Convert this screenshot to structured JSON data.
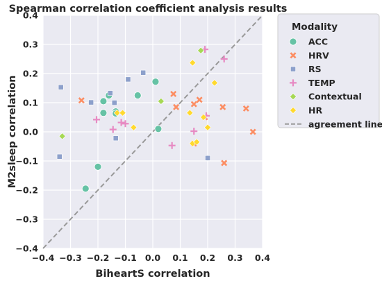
{
  "chart_data": {
    "type": "scatter",
    "title": "Spearman correlation coefficient analysis results",
    "xlabel": "BiheartS correlation",
    "ylabel": "M2sleep correlation",
    "xlim": [
      -0.4,
      0.4
    ],
    "ylim": [
      -0.4,
      0.4
    ],
    "xticks": [
      "−0.4",
      "−0.3",
      "−0.2",
      "−0.1",
      "0.0",
      "0.1",
      "0.2",
      "0.3",
      "0.4"
    ],
    "yticks": [
      "0.4",
      "0.3",
      "0.2",
      "0.1",
      "0.0",
      "−0.1",
      "−0.2",
      "−0.3",
      "−0.4"
    ],
    "xtick_values": [
      -0.4,
      -0.3,
      -0.2,
      -0.1,
      0.0,
      0.1,
      0.2,
      0.3,
      0.4
    ],
    "ytick_values": [
      0.4,
      0.3,
      0.2,
      0.1,
      0.0,
      -0.1,
      -0.2,
      -0.3,
      -0.4
    ],
    "grid": true,
    "background": "#eaeaf2",
    "legend": {
      "title": "Modality",
      "placement": "outside-right-top",
      "agreement_label": "agreement line"
    },
    "agreement_line": {
      "from": [
        -0.4,
        -0.4
      ],
      "to": [
        0.4,
        0.4
      ],
      "color": "#999999",
      "style": "dashed"
    },
    "series": [
      {
        "name": "ACC",
        "marker": "circle",
        "color": "#66c2a5",
        "points": [
          [
            -0.245,
            -0.195
          ],
          [
            -0.2,
            -0.12
          ],
          [
            -0.18,
            0.065
          ],
          [
            -0.18,
            0.105
          ],
          [
            -0.16,
            0.125
          ],
          [
            -0.135,
            0.07
          ],
          [
            -0.135,
            0.063
          ],
          [
            -0.055,
            0.125
          ],
          [
            0.01,
            0.172
          ],
          [
            0.02,
            0.01
          ]
        ]
      },
      {
        "name": "HRV",
        "marker": "x",
        "color": "#fc8d62",
        "points": [
          [
            -0.26,
            0.108
          ],
          [
            0.075,
            0.13
          ],
          [
            0.085,
            0.085
          ],
          [
            0.15,
            0.095
          ],
          [
            0.17,
            0.11
          ],
          [
            0.19,
            0.05
          ],
          [
            0.15,
            -0.04
          ],
          [
            0.255,
            0.085
          ],
          [
            0.26,
            -0.107
          ],
          [
            0.34,
            0.08
          ],
          [
            0.365,
            0.0
          ]
        ]
      },
      {
        "name": "RS",
        "marker": "square",
        "color": "#8da0cb",
        "points": [
          [
            -0.335,
            0.153
          ],
          [
            -0.34,
            -0.085
          ],
          [
            -0.225,
            0.101
          ],
          [
            -0.155,
            0.133
          ],
          [
            -0.14,
            0.1
          ],
          [
            -0.135,
            -0.022
          ],
          [
            -0.09,
            0.18
          ],
          [
            -0.035,
            0.203
          ],
          [
            0.2,
            -0.09
          ]
        ]
      },
      {
        "name": "TEMP",
        "marker": "plus",
        "color": "#e78ac3",
        "points": [
          [
            -0.205,
            0.042
          ],
          [
            -0.145,
            0.008
          ],
          [
            -0.115,
            0.032
          ],
          [
            -0.1,
            0.028
          ],
          [
            0.07,
            -0.047
          ],
          [
            0.15,
            0.002
          ],
          [
            0.19,
            0.283
          ],
          [
            0.26,
            0.25
          ],
          [
            0.195,
            0.055
          ]
        ]
      },
      {
        "name": "Contextual",
        "marker": "diamond",
        "color": "#a6d854",
        "points": [
          [
            -0.33,
            -0.015
          ],
          [
            0.03,
            0.105
          ],
          [
            0.175,
            0.279
          ]
        ]
      },
      {
        "name": "HR",
        "marker": "diamond",
        "color": "#ffd92f",
        "points": [
          [
            -0.13,
            0.065
          ],
          [
            -0.11,
            0.065
          ],
          [
            -0.07,
            0.015
          ],
          [
            0.135,
            0.065
          ],
          [
            0.145,
            0.237
          ],
          [
            0.145,
            -0.04
          ],
          [
            0.16,
            -0.035
          ],
          [
            0.185,
            0.05
          ],
          [
            0.2,
            0.015
          ],
          [
            0.225,
            0.168
          ]
        ]
      }
    ]
  }
}
